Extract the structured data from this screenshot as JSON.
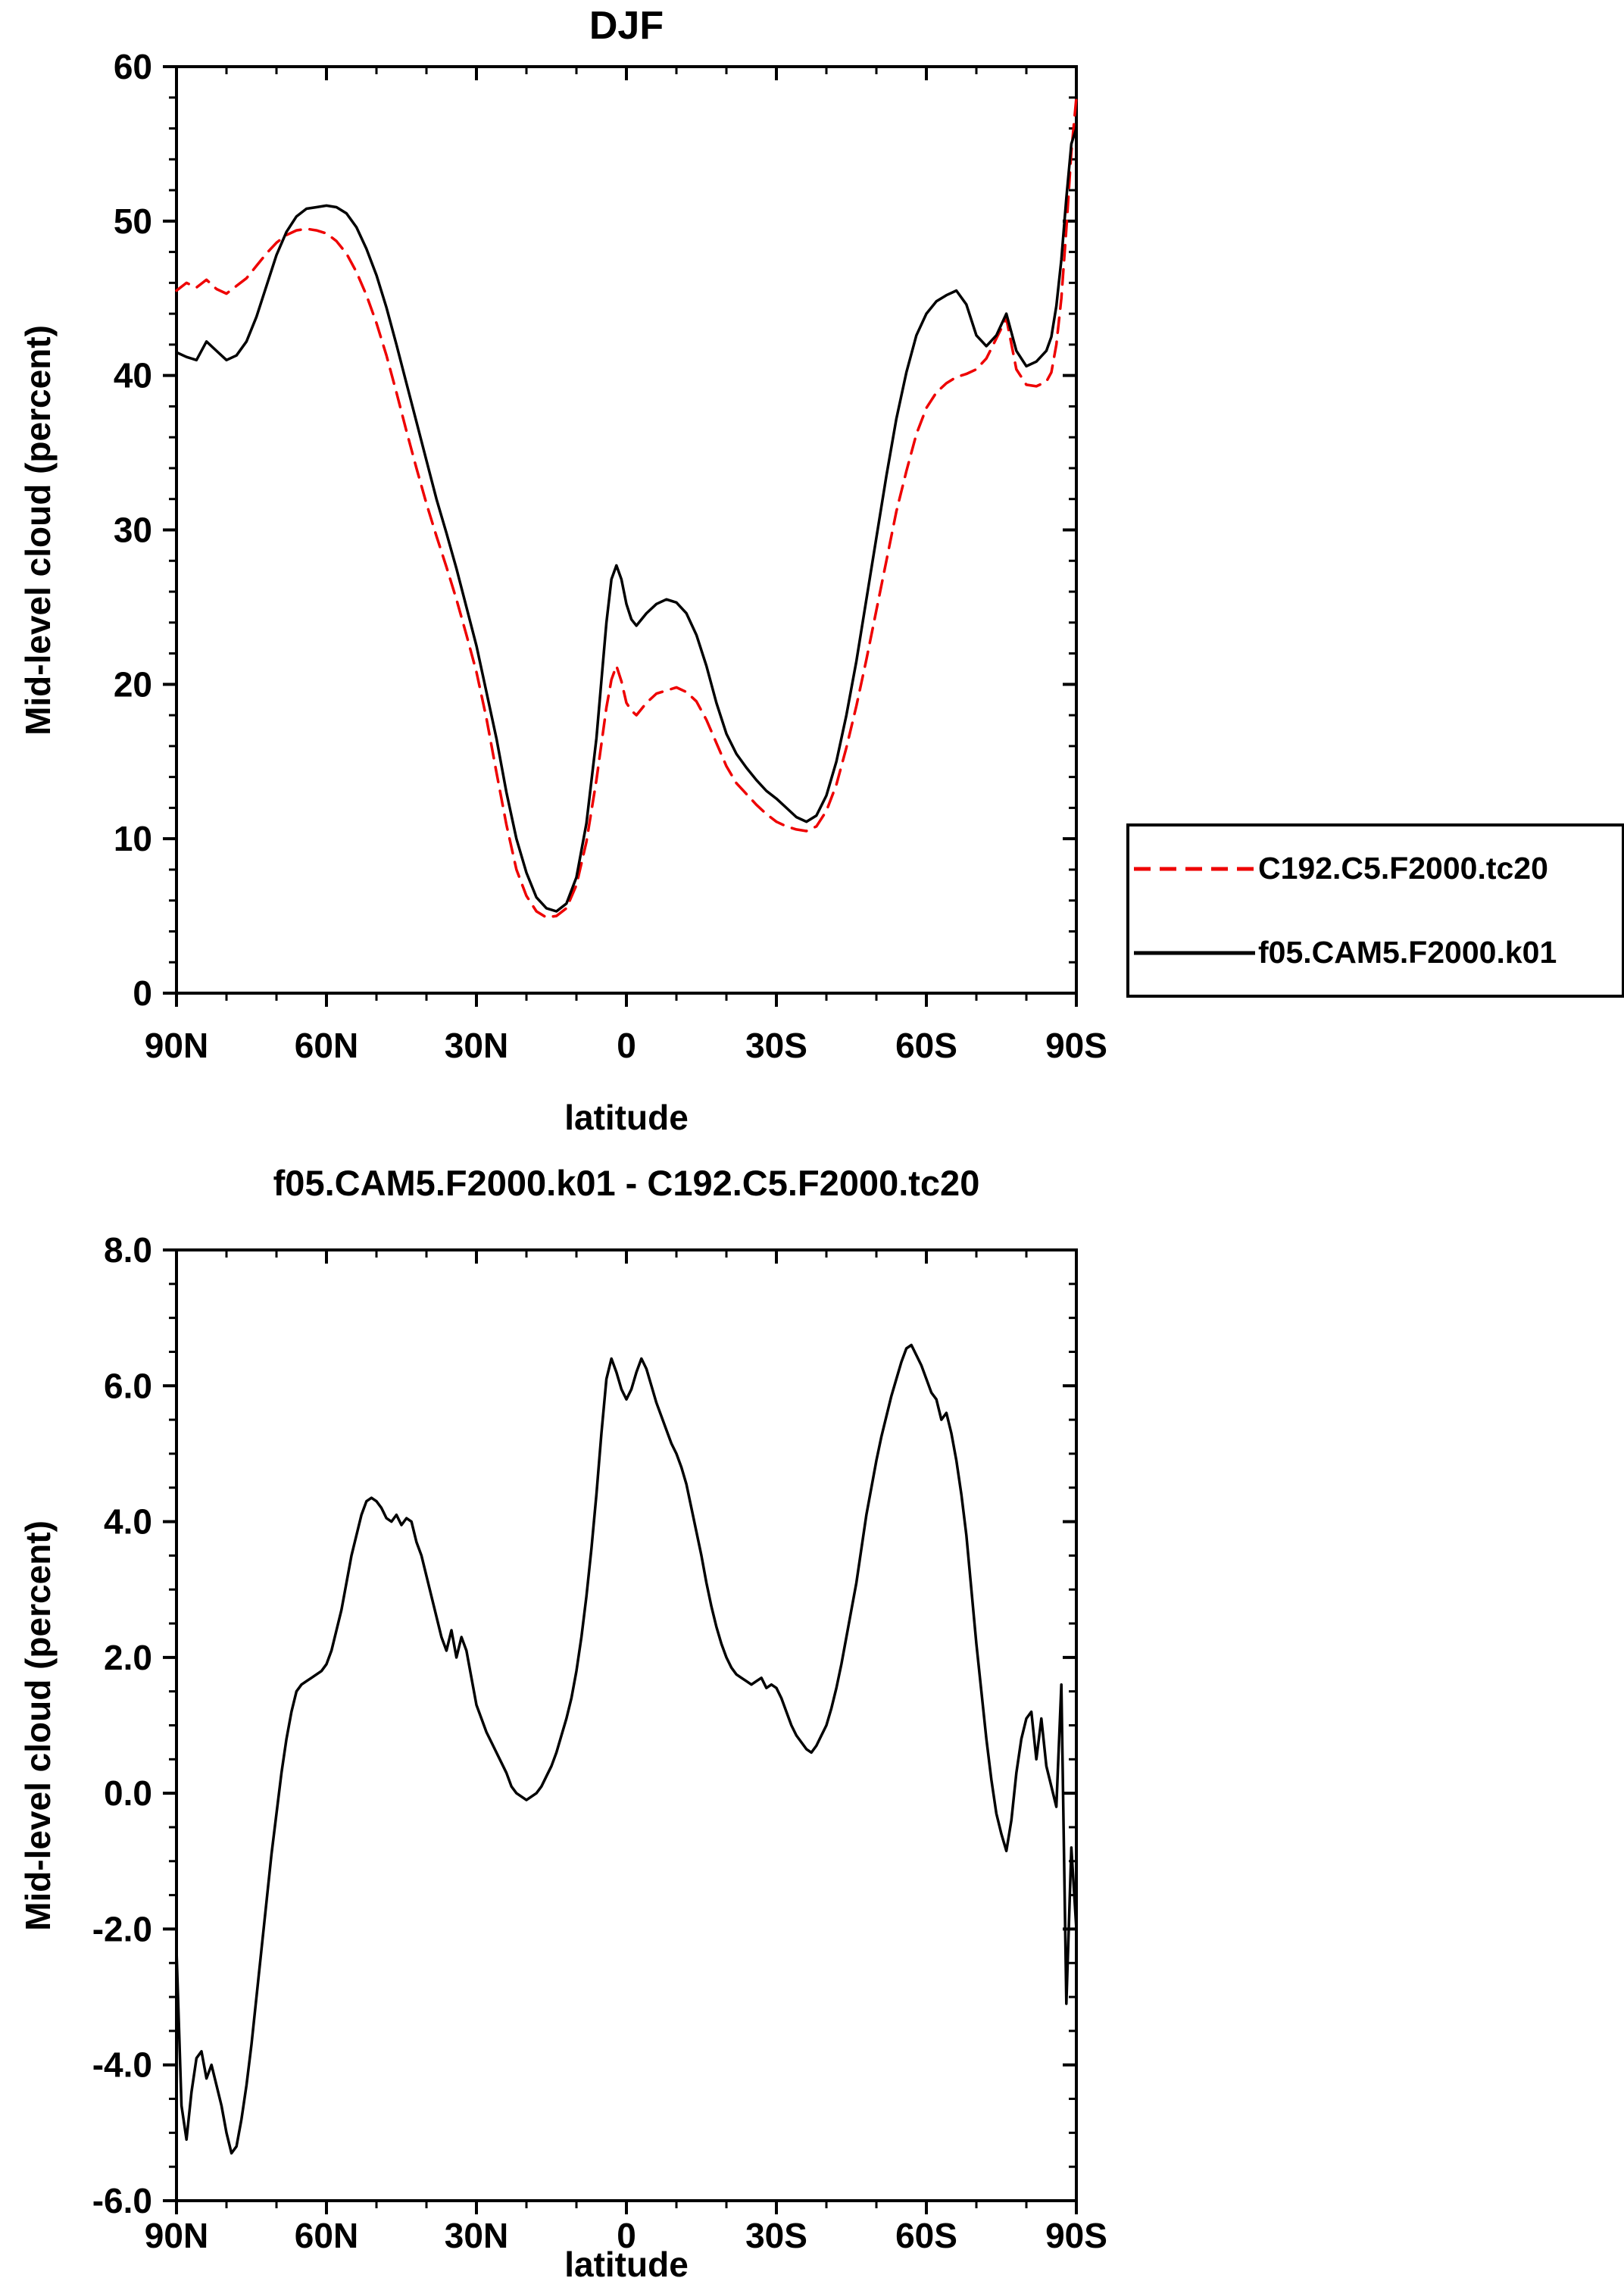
{
  "figure": {
    "background": "#ffffff",
    "text_color": "#000000"
  },
  "chart_data": [
    {
      "type": "line",
      "name": "djf-means",
      "title": "DJF",
      "xlabel": "latitude",
      "ylabel": "Mid-level cloud (percent)",
      "xticks": [
        90,
        60,
        30,
        0,
        -30,
        -60,
        -90
      ],
      "xtick_labels": [
        "90N",
        "60N",
        "30N",
        "0",
        "30S",
        "60S",
        "90S"
      ],
      "x_minor_step": 10,
      "ylim": [
        0,
        60
      ],
      "yticks": [
        0,
        10,
        20,
        30,
        40,
        50,
        60
      ],
      "ytick_labels": [
        "0",
        "10",
        "20",
        "30",
        "40",
        "50",
        "60"
      ],
      "y_minor_step": 2,
      "grid": false,
      "legend": {
        "position": "outside-right",
        "entries": [
          {
            "label": "C192.C5.F2000.tc20",
            "color": "#ee0000",
            "dash": true
          },
          {
            "label": "f05.CAM5.F2000.k01",
            "color": "#000000",
            "dash": false
          }
        ]
      },
      "series": [
        {
          "name": "C192.C5.F2000.tc20",
          "color": "#ee0000",
          "style": "dashed",
          "x": [
            90,
            88,
            86,
            84,
            82,
            80,
            78,
            76,
            74,
            72,
            70,
            68,
            66,
            64,
            62,
            60,
            58,
            56,
            54,
            52,
            50,
            48,
            46,
            44,
            42,
            40,
            38,
            36,
            34,
            32,
            30,
            28,
            26,
            24,
            22,
            20,
            18,
            16,
            14,
            12,
            10,
            8,
            6,
            4,
            3,
            2,
            1,
            0,
            -1,
            -2,
            -4,
            -6,
            -8,
            -10,
            -12,
            -14,
            -16,
            -18,
            -20,
            -22,
            -24,
            -26,
            -28,
            -30,
            -32,
            -34,
            -36,
            -38,
            -40,
            -42,
            -44,
            -46,
            -48,
            -50,
            -52,
            -54,
            -56,
            -58,
            -60,
            -62,
            -64,
            -66,
            -68,
            -70,
            -72,
            -74,
            -76,
            -78,
            -80,
            -82,
            -84,
            -85,
            -86,
            -87,
            -88,
            -89,
            -90
          ],
          "y": [
            45.5,
            46.0,
            45.7,
            46.2,
            45.6,
            45.3,
            45.8,
            46.3,
            47.1,
            47.9,
            48.6,
            49.1,
            49.4,
            49.5,
            49.4,
            49.2,
            48.7,
            47.9,
            46.7,
            45.2,
            43.4,
            41.3,
            38.9,
            36.4,
            34.0,
            31.7,
            29.6,
            27.6,
            25.5,
            23.2,
            20.8,
            17.8,
            14.3,
            10.9,
            8.0,
            6.3,
            5.3,
            4.9,
            5.0,
            5.5,
            7.0,
            9.8,
            13.8,
            18.5,
            20.3,
            21.2,
            20.2,
            18.8,
            18.3,
            18.0,
            18.8,
            19.4,
            19.6,
            19.8,
            19.5,
            18.9,
            17.7,
            16.2,
            14.7,
            13.6,
            12.9,
            12.2,
            11.6,
            11.1,
            10.8,
            10.6,
            10.5,
            10.8,
            11.8,
            13.5,
            15.9,
            18.6,
            21.6,
            24.8,
            28.0,
            31.2,
            33.8,
            36.2,
            37.9,
            38.9,
            39.5,
            39.9,
            40.1,
            40.4,
            41.1,
            42.4,
            43.7,
            40.4,
            39.4,
            39.3,
            39.6,
            40.2,
            42.0,
            45.0,
            49.5,
            54.5,
            58.0
          ]
        },
        {
          "name": "f05.CAM5.F2000.k01",
          "color": "#000000",
          "style": "solid",
          "x": [
            90,
            88,
            86,
            84,
            82,
            80,
            78,
            76,
            74,
            72,
            70,
            68,
            66,
            64,
            62,
            60,
            58,
            56,
            54,
            52,
            50,
            48,
            46,
            44,
            42,
            40,
            38,
            36,
            34,
            32,
            30,
            28,
            26,
            24,
            22,
            20,
            18,
            16,
            14,
            12,
            10,
            8,
            6,
            4,
            3,
            2,
            1,
            0,
            -1,
            -2,
            -4,
            -6,
            -8,
            -10,
            -12,
            -14,
            -16,
            -18,
            -20,
            -22,
            -24,
            -26,
            -28,
            -30,
            -32,
            -34,
            -36,
            -38,
            -40,
            -42,
            -44,
            -46,
            -48,
            -50,
            -52,
            -54,
            -56,
            -58,
            -60,
            -62,
            -64,
            -66,
            -68,
            -70,
            -72,
            -74,
            -76,
            -78,
            -80,
            -82,
            -84,
            -85,
            -86,
            -87,
            -88,
            -89,
            -90
          ],
          "y": [
            41.5,
            41.2,
            41.0,
            42.2,
            41.6,
            41.0,
            41.3,
            42.2,
            43.8,
            45.8,
            47.8,
            49.3,
            50.3,
            50.8,
            50.9,
            51.0,
            50.9,
            50.5,
            49.6,
            48.2,
            46.5,
            44.4,
            42.0,
            39.5,
            37.0,
            34.5,
            32.0,
            29.8,
            27.5,
            25.0,
            22.5,
            19.5,
            16.5,
            13.0,
            10.0,
            7.8,
            6.2,
            5.5,
            5.3,
            5.8,
            7.5,
            11.0,
            16.5,
            24.0,
            26.8,
            27.7,
            26.8,
            25.2,
            24.2,
            23.8,
            24.6,
            25.2,
            25.5,
            25.3,
            24.6,
            23.2,
            21.2,
            18.8,
            16.8,
            15.5,
            14.6,
            13.8,
            13.1,
            12.6,
            12.0,
            11.4,
            11.1,
            11.5,
            12.8,
            15.0,
            18.0,
            21.5,
            25.5,
            29.5,
            33.5,
            37.2,
            40.2,
            42.6,
            44.0,
            44.8,
            45.2,
            45.5,
            44.6,
            42.6,
            41.9,
            42.6,
            44.0,
            41.6,
            40.6,
            40.9,
            41.6,
            42.5,
            44.5,
            47.5,
            51.5,
            55.0,
            56.0
          ]
        }
      ]
    },
    {
      "type": "line",
      "name": "difference",
      "title": "f05.CAM5.F2000.k01 - C192.C5.F2000.tc20",
      "xlabel": "latitude",
      "ylabel": "Mid-level cloud (percent)",
      "xticks": [
        90,
        60,
        30,
        0,
        -30,
        -60,
        -90
      ],
      "xtick_labels": [
        "90N",
        "60N",
        "30N",
        "0",
        "30S",
        "60S",
        "90S"
      ],
      "x_minor_step": 10,
      "ylim": [
        -6,
        8
      ],
      "yticks": [
        8,
        6,
        4,
        2,
        0,
        -2,
        -4,
        -6
      ],
      "ytick_labels": [
        "8.0",
        "6.0",
        "4.0",
        "2.0",
        "0.0",
        "-2.0",
        "-4.0",
        "-6.0"
      ],
      "y_minor_step": 0.5,
      "grid": false,
      "series": [
        {
          "name": "f05.CAM5.F2000.k01 minus C192.C5.F2000.tc20",
          "color": "#000000",
          "style": "solid",
          "x": [
            90,
            89,
            88,
            87,
            86,
            85,
            84,
            83,
            82,
            81,
            80,
            79,
            78,
            77,
            76,
            75,
            74,
            73,
            72,
            71,
            70,
            69,
            68,
            67,
            66,
            65,
            64,
            63,
            62,
            61,
            60,
            59,
            58,
            57,
            56,
            55,
            54,
            53,
            52,
            51,
            50,
            49,
            48,
            47,
            46,
            45,
            44,
            43,
            42,
            41,
            40,
            39,
            38,
            37,
            36,
            35,
            34,
            33,
            32,
            31,
            30,
            29,
            28,
            27,
            26,
            25,
            24,
            23,
            22,
            21,
            20,
            19,
            18,
            17,
            16,
            15,
            14,
            13,
            12,
            11,
            10,
            9,
            8,
            7,
            6,
            5,
            4,
            3,
            2,
            1,
            0,
            -1,
            -2,
            -3,
            -4,
            -5,
            -6,
            -7,
            -8,
            -9,
            -10,
            -11,
            -12,
            -13,
            -14,
            -15,
            -16,
            -17,
            -18,
            -19,
            -20,
            -21,
            -22,
            -23,
            -24,
            -25,
            -26,
            -27,
            -28,
            -29,
            -30,
            -31,
            -32,
            -33,
            -34,
            -35,
            -36,
            -37,
            -38,
            -39,
            -40,
            -41,
            -42,
            -43,
            -44,
            -45,
            -46,
            -47,
            -48,
            -49,
            -50,
            -51,
            -52,
            -53,
            -54,
            -55,
            -56,
            -57,
            -58,
            -59,
            -60,
            -61,
            -62,
            -63,
            -64,
            -65,
            -66,
            -67,
            -68,
            -69,
            -70,
            -71,
            -72,
            -73,
            -74,
            -75,
            -76,
            -77,
            -78,
            -79,
            -80,
            -81,
            -82,
            -83,
            -84,
            -85,
            -86,
            -87,
            -88,
            -89,
            -90
          ],
          "y": [
            -2.3,
            -4.6,
            -5.1,
            -4.4,
            -3.9,
            -3.8,
            -4.2,
            -4.0,
            -4.3,
            -4.6,
            -5.0,
            -5.3,
            -5.2,
            -4.8,
            -4.3,
            -3.7,
            -3.0,
            -2.3,
            -1.6,
            -0.9,
            -0.3,
            0.3,
            0.8,
            1.2,
            1.5,
            1.6,
            1.65,
            1.7,
            1.75,
            1.8,
            1.9,
            2.1,
            2.4,
            2.7,
            3.1,
            3.5,
            3.8,
            4.1,
            4.3,
            4.35,
            4.3,
            4.2,
            4.05,
            4.0,
            4.1,
            3.95,
            4.05,
            4.0,
            3.7,
            3.5,
            3.2,
            2.9,
            2.6,
            2.3,
            2.1,
            2.4,
            2.0,
            2.3,
            2.1,
            1.7,
            1.3,
            1.1,
            0.9,
            0.75,
            0.6,
            0.45,
            0.3,
            0.1,
            0.0,
            -0.05,
            -0.1,
            -0.05,
            0.0,
            0.1,
            0.25,
            0.4,
            0.6,
            0.85,
            1.1,
            1.4,
            1.8,
            2.3,
            2.9,
            3.6,
            4.4,
            5.3,
            6.1,
            6.4,
            6.2,
            5.95,
            5.8,
            5.95,
            6.2,
            6.4,
            6.25,
            6.0,
            5.75,
            5.55,
            5.35,
            5.15,
            5.0,
            4.8,
            4.55,
            4.2,
            3.85,
            3.5,
            3.1,
            2.75,
            2.45,
            2.2,
            2.0,
            1.85,
            1.75,
            1.7,
            1.65,
            1.6,
            1.65,
            1.7,
            1.55,
            1.6,
            1.55,
            1.4,
            1.2,
            1.0,
            0.85,
            0.75,
            0.65,
            0.6,
            0.7,
            0.85,
            1.0,
            1.25,
            1.55,
            1.9,
            2.3,
            2.7,
            3.1,
            3.6,
            4.1,
            4.5,
            4.9,
            5.25,
            5.55,
            5.85,
            6.1,
            6.35,
            6.55,
            6.6,
            6.45,
            6.3,
            6.1,
            5.9,
            5.8,
            5.5,
            5.6,
            5.3,
            4.9,
            4.4,
            3.8,
            3.0,
            2.2,
            1.5,
            0.8,
            0.2,
            -0.3,
            -0.6,
            -0.85,
            -0.4,
            0.3,
            0.8,
            1.1,
            1.2,
            0.5,
            1.1,
            0.4,
            0.1,
            -0.2,
            1.6,
            -3.1,
            -0.8,
            -2.0
          ]
        }
      ]
    }
  ]
}
